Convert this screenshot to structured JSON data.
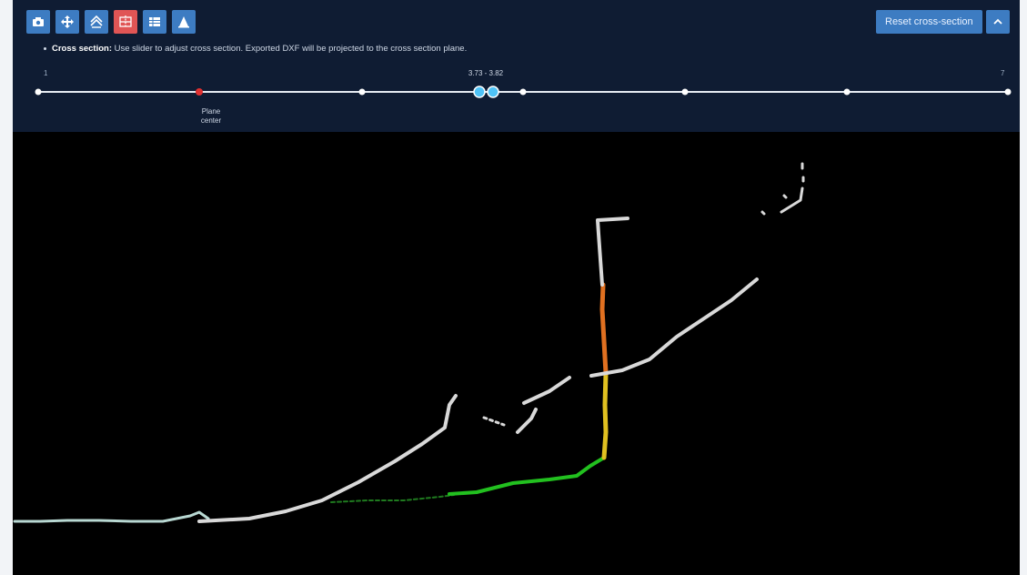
{
  "toolbar": {
    "buttons": [
      {
        "icon": "camera-icon",
        "active": false
      },
      {
        "icon": "move-icon",
        "active": false
      },
      {
        "icon": "layers-icon",
        "active": false
      },
      {
        "icon": "cross-section-icon",
        "active": true
      },
      {
        "icon": "table-icon",
        "active": false
      },
      {
        "icon": "measure-icon",
        "active": false
      }
    ],
    "reset_label": "Reset cross-section",
    "collapse_icon": "chevron-up-icon"
  },
  "info": {
    "title": "Cross section:",
    "text": "Use slider to adjust cross section. Exported DXF will be projected to the cross section plane."
  },
  "slider": {
    "min_label": "1",
    "max_label": "7",
    "range_label": "3.73 - 3.82",
    "plane_label_1": "Plane",
    "plane_label_2": "center"
  },
  "colors": {
    "panel_bg": "#0f1c33",
    "button": "#3d7cc2",
    "button_active": "#e05555",
    "handle": "#4fc3f7",
    "plane_marker": "#e03030"
  }
}
